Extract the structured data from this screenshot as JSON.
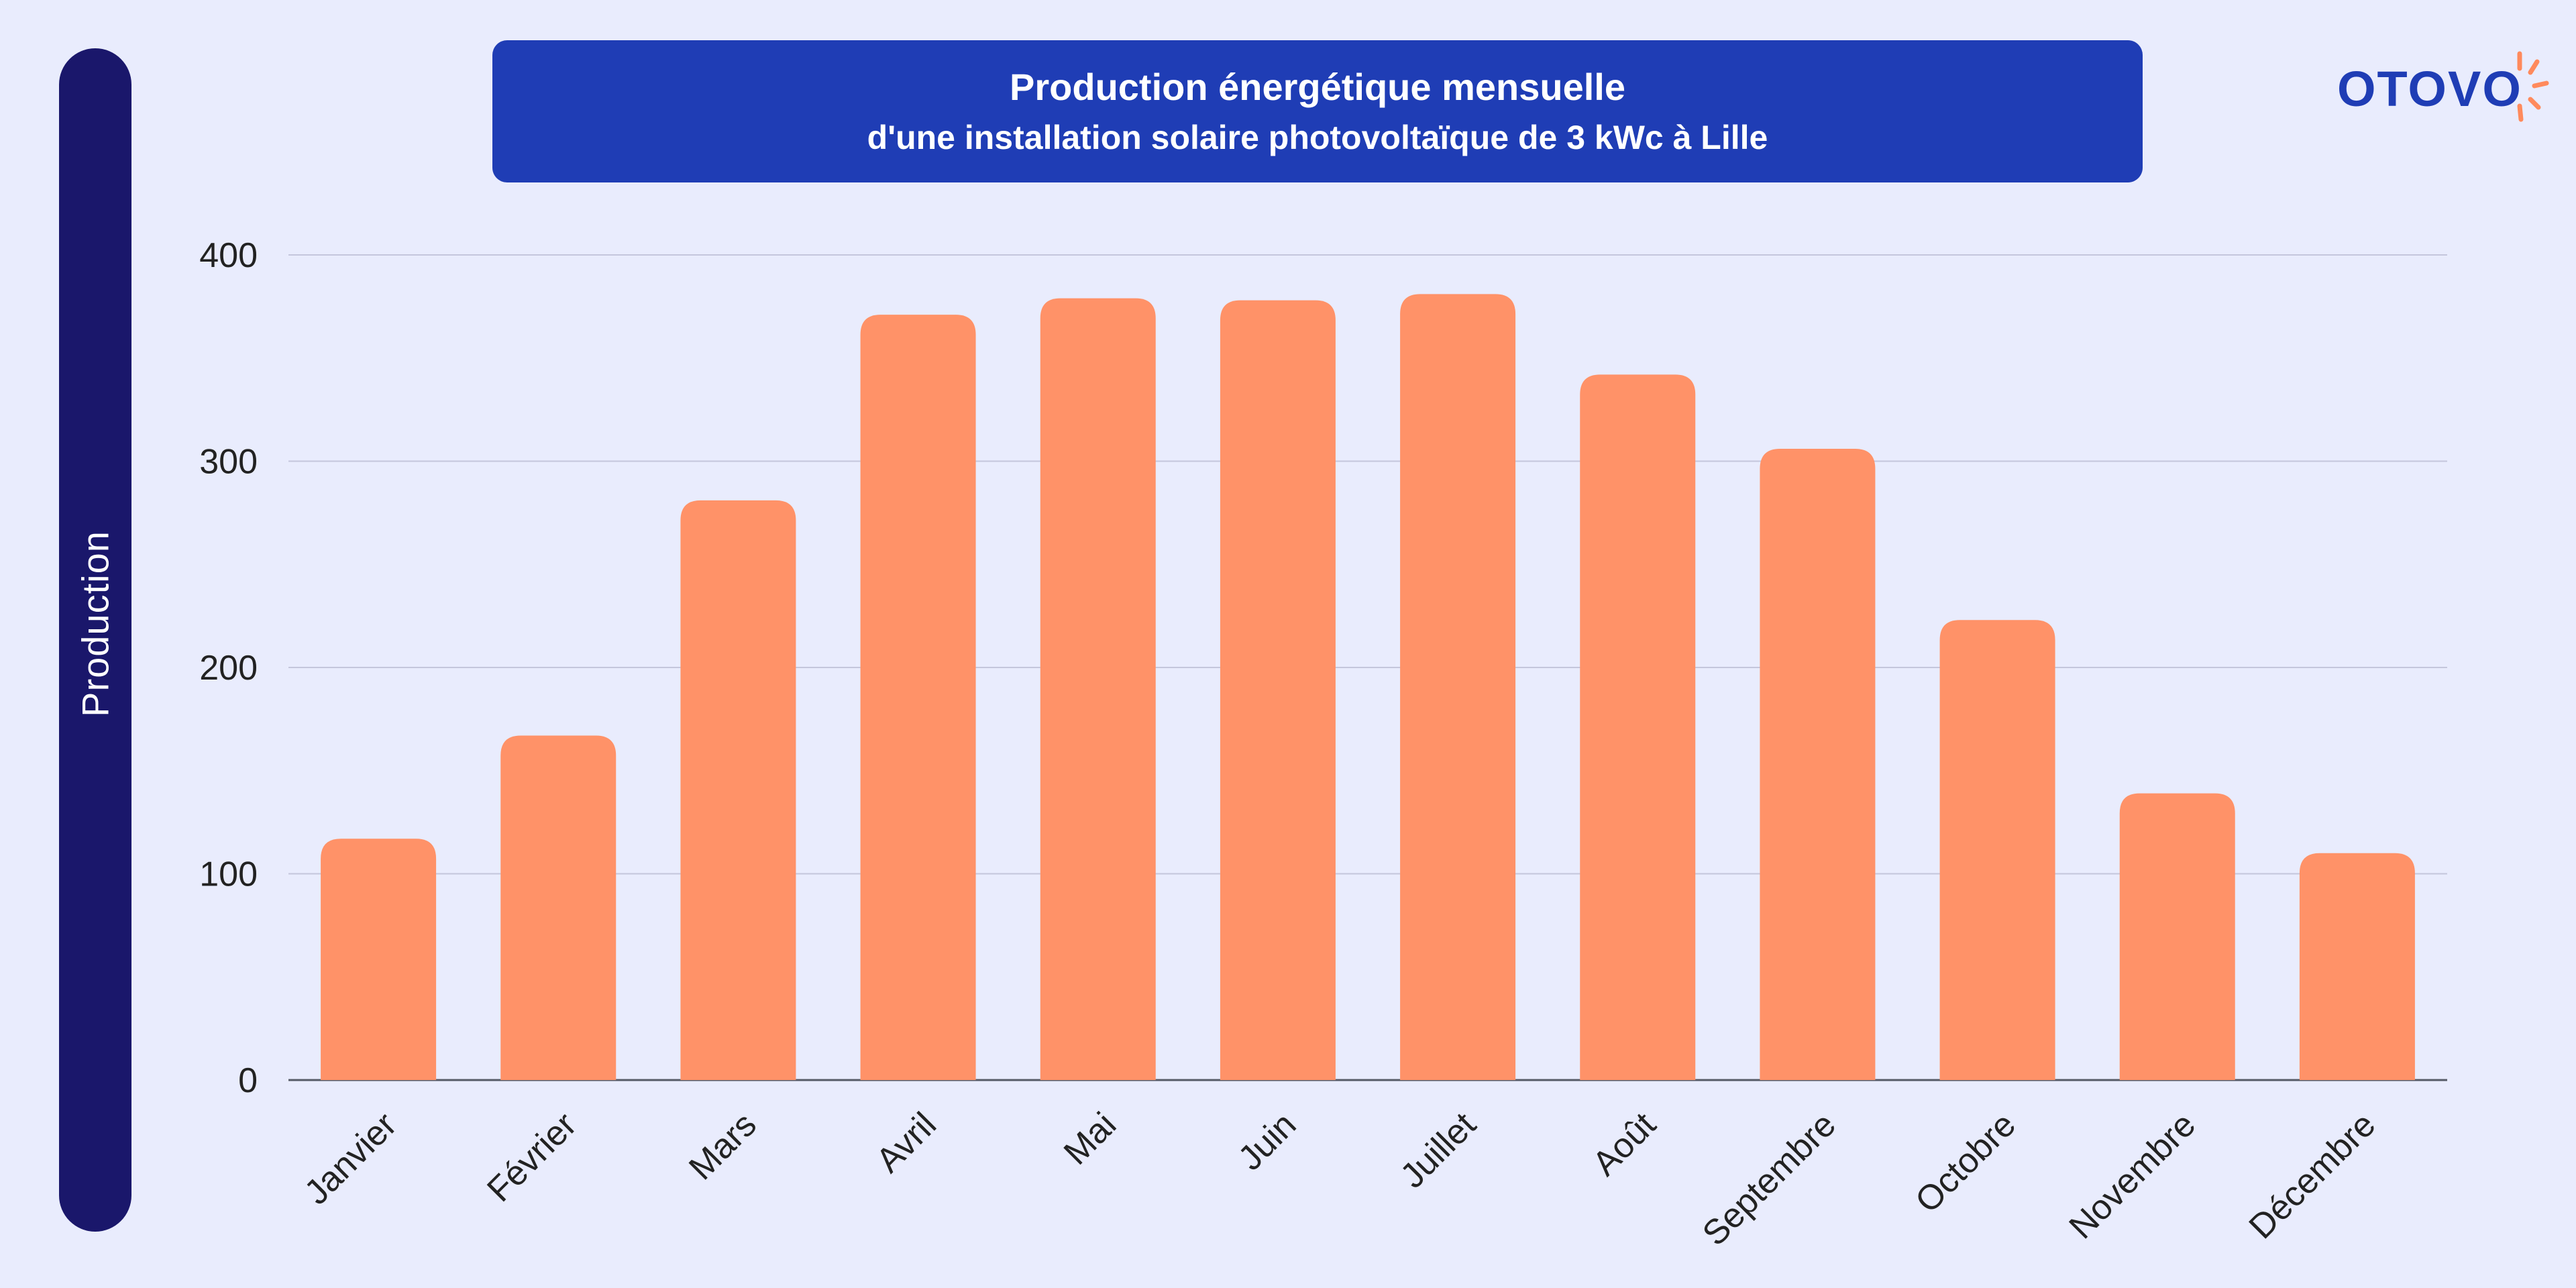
{
  "side_label": "Production",
  "header": {
    "title_line1": "Production énergétique mensuelle",
    "title_line2": "d'une installation solaire photovoltaïque de 3 kWc à Lille"
  },
  "brand": {
    "name": "OTOVO",
    "icon": "sun-rays-icon"
  },
  "colors": {
    "background": "#e9ecfd",
    "bar": "#ff9268",
    "title_box": "#1f3db5",
    "side_bar": "#1a176b",
    "grid": "#c4c6dc",
    "text": "#222222"
  },
  "chart_data": {
    "type": "bar",
    "title": "Production énergétique mensuelle d'une installation solaire photovoltaïque de 3 kWc à Lille",
    "xlabel": "",
    "ylabel": "Production",
    "categories": [
      "Janvier",
      "Février",
      "Mars",
      "Avril",
      "Mai",
      "Juin",
      "Juillet",
      "Août",
      "Septembre",
      "Octobre",
      "Novembre",
      "Décembre"
    ],
    "values": [
      117,
      167,
      281,
      371,
      379,
      378,
      381,
      342,
      306,
      223,
      139,
      110
    ],
    "ylim": [
      0,
      400
    ],
    "yticks": [
      0,
      100,
      200,
      300,
      400
    ],
    "grid": true,
    "legend": "none"
  }
}
